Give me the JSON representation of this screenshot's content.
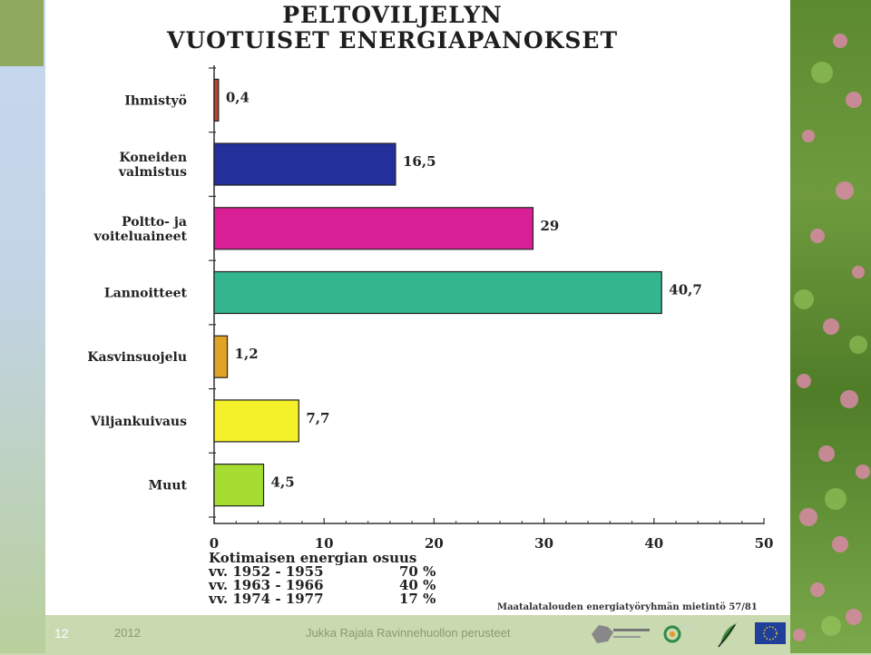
{
  "title": {
    "line1": "PELTOVILJELYN",
    "line2": "VUOTUISET ENERGIAPANOKSET"
  },
  "chart_data": {
    "type": "bar",
    "orientation": "horizontal",
    "categories": [
      [
        "Ihmistyö"
      ],
      [
        "Koneiden",
        "valmistus"
      ],
      [
        "Poltto- ja",
        "voiteluaineet"
      ],
      [
        "Lannoitteet"
      ],
      [
        "Kasvinsuojelu"
      ],
      [
        "Viljankuivaus"
      ],
      [
        "Muut"
      ]
    ],
    "values": [
      0.4,
      16.5,
      29,
      40.7,
      1.2,
      7.7,
      4.5
    ],
    "value_labels": [
      "0,4",
      "16,5",
      "29",
      "40,7",
      "1,2",
      "7,7",
      "4,5"
    ],
    "colors": [
      "#b8442f",
      "#24309a",
      "#d81f96",
      "#33b58d",
      "#e0a326",
      "#f4f02a",
      "#a6dd33"
    ],
    "xlim": [
      0,
      50
    ],
    "xticks": [
      "0",
      "10",
      "20",
      "30",
      "40",
      "50"
    ],
    "grid": false
  },
  "share": {
    "heading": "Kotimaisen energian osuus",
    "rows": [
      {
        "period": "vv. 1952 - 1955",
        "pct": "70 %"
      },
      {
        "period": "vv. 1963 - 1966",
        "pct": "40 %"
      },
      {
        "period": "vv. 1974 - 1977",
        "pct": "17 %"
      }
    ]
  },
  "source": "Maatalatalouden energiatyöryhmän mietintö 57/81",
  "footer": {
    "slide_number": "12",
    "year": "2012",
    "text": "Jukka Rajala Ravinnehuollon perusteet",
    "logo_mtt": "MTT"
  },
  "colors": {
    "accent_green": "#8fa95e",
    "footer_text": "#8a9a74"
  }
}
